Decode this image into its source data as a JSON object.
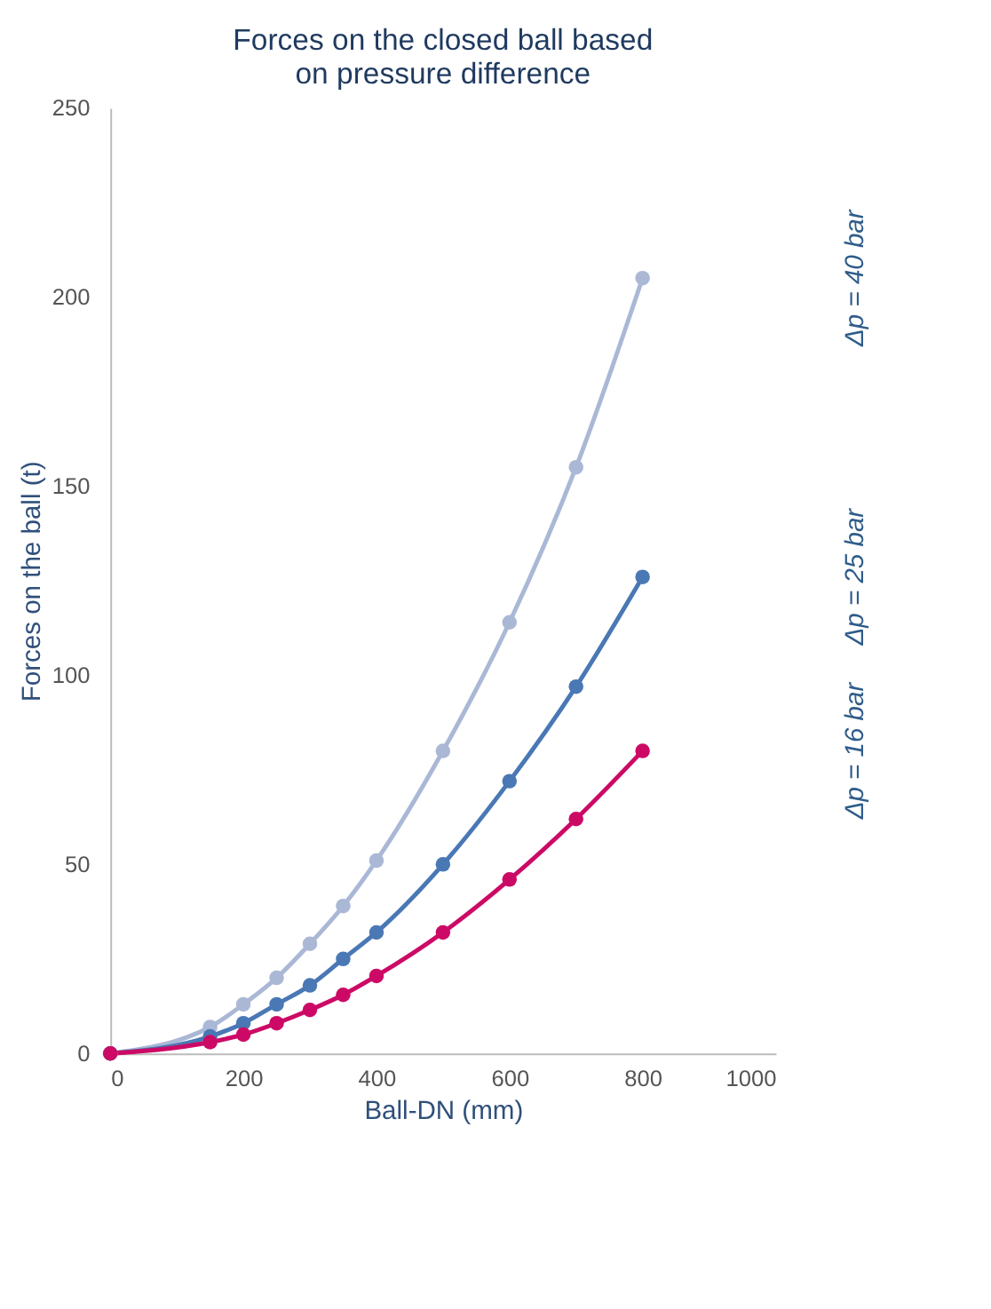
{
  "chart_data": {
    "type": "line",
    "title": [
      "Forces on the closed ball based",
      "on pressure difference"
    ],
    "xlabel": "Ball-DN (mm)",
    "ylabel": "Forces on the ball (t)",
    "x": [
      0,
      150,
      200,
      250,
      300,
      350,
      400,
      500,
      600,
      700,
      800
    ],
    "series": [
      {
        "name": "Δp = 40 bar",
        "color": "#aab8d6",
        "values": [
          0,
          7,
          13,
          20,
          29,
          39,
          51,
          80,
          114,
          155,
          205
        ]
      },
      {
        "name": "Δp = 25 bar",
        "color": "#4a78b5",
        "values": [
          0,
          4.5,
          8,
          13,
          18,
          25,
          32,
          50,
          72,
          97,
          126
        ]
      },
      {
        "name": "Δp = 16 bar",
        "color": "#cc0a66",
        "values": [
          0,
          3,
          5,
          8,
          11.5,
          15.5,
          20.5,
          32,
          46,
          62,
          80
        ]
      }
    ],
    "xlim": [
      0,
      1000
    ],
    "xticks": [
      0,
      200,
      400,
      600,
      800,
      1000
    ],
    "ylim": [
      0,
      250
    ],
    "yticks": [
      0,
      50,
      100,
      150,
      200,
      250
    ],
    "grid": false,
    "marker": "circle",
    "line_style": "solid"
  }
}
